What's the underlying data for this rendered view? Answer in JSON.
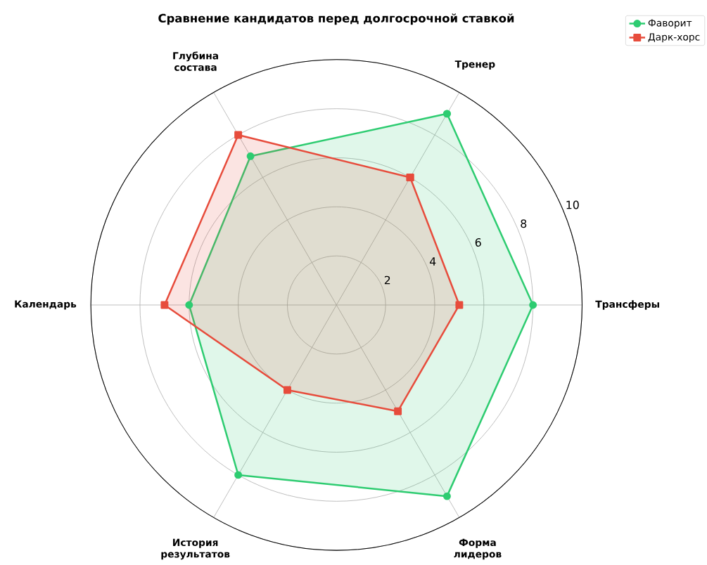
{
  "chart_data": {
    "type": "radar",
    "title": "Сравнение кандидатов перед долгосрочной ставкой",
    "categories": [
      "Тренер",
      "Трансферы",
      "Форма лидеров",
      "История результатов",
      "Календарь",
      "Глубина состава"
    ],
    "series": [
      {
        "name": "Фаворит",
        "color": "#2ecc71",
        "marker": "circle",
        "values": [
          9,
          8,
          9,
          8,
          6,
          7
        ]
      },
      {
        "name": "Дарк-хорс",
        "color": "#e74c3c",
        "marker": "square",
        "values": [
          6,
          5,
          5,
          4,
          7,
          8
        ]
      }
    ],
    "ylim": [
      0,
      10
    ],
    "yticks": [
      2,
      4,
      6,
      8,
      10
    ],
    "grid": true,
    "legend": "top right",
    "line_style": "solid"
  }
}
